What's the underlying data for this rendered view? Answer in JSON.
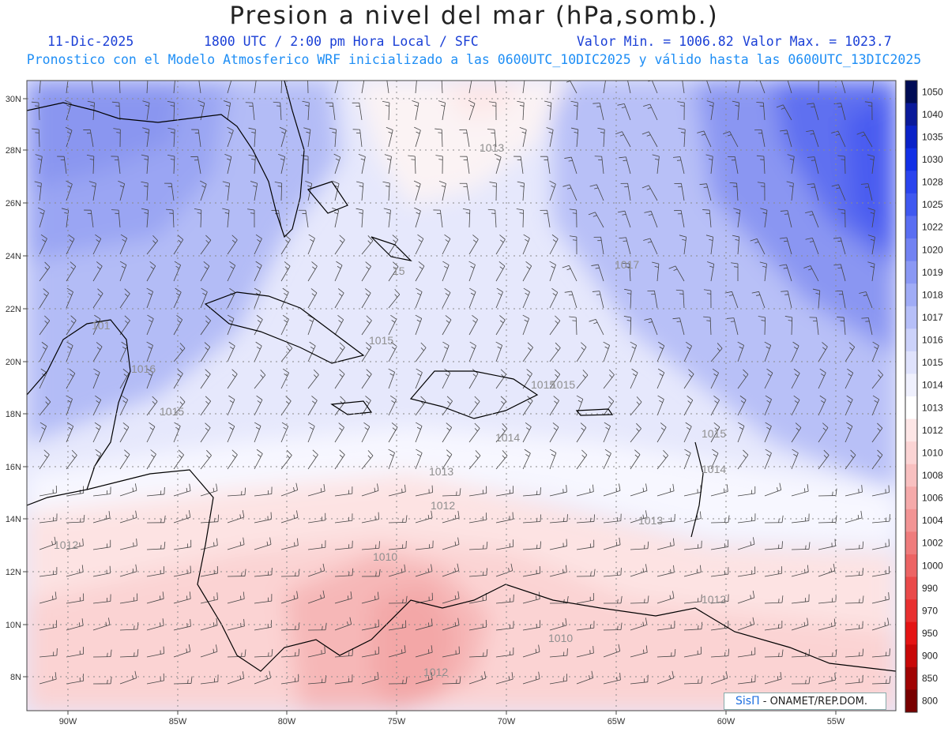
{
  "header": {
    "title": "Presion a nivel del mar (hPa,somb.)",
    "date": "11-Dic-2025",
    "time": "1800 UTC / 2:00 pm Hora Local / SFC",
    "min": "Valor Min. = 1006.82",
    "max": "Valor Max. = 1023.7",
    "subtitle": "Pronostico con el Modelo Atmosferico WRF inicializado a las 0600UTC_10DIC2025 y válido hasta las  0600UTC_13DIC2025"
  },
  "axes": {
    "lon_labels": [
      "90W",
      "85W",
      "80W",
      "75W",
      "70W",
      "65W",
      "60W",
      "55W"
    ],
    "lat_labels": [
      "30N",
      "28N",
      "26N",
      "24N",
      "22N",
      "20N",
      "18N",
      "16N",
      "14N",
      "12N",
      "10N",
      "8N"
    ]
  },
  "colorbar": {
    "levels": [
      "1050",
      "1040",
      "1035",
      "1030",
      "1028",
      "1025",
      "1022",
      "1020",
      "1019",
      "1018",
      "1017",
      "1016",
      "1015",
      "1014",
      "1013",
      "1012",
      "1010",
      "1008",
      "1006",
      "1004",
      "1002",
      "1000",
      "990",
      "970",
      "950",
      "900",
      "850",
      "800"
    ],
    "colors": [
      "#000c55",
      "#0a1a9a",
      "#0a22c8",
      "#1230e6",
      "#2a44ee",
      "#3f58f0",
      "#5a6ef2",
      "#7282f2",
      "#8a98f4",
      "#a0acf6",
      "#b6bff8",
      "#ccd2fa",
      "#dfe2fc",
      "#eff0fd",
      "#ffffff",
      "#fde6e6",
      "#fbd4d4",
      "#f8c0c0",
      "#f5aaaa",
      "#f29494",
      "#ef7c7c",
      "#ec6464",
      "#ea4a4a",
      "#e83030",
      "#e41414",
      "#c80808",
      "#a00404",
      "#780000"
    ]
  },
  "contour_labels": [
    {
      "text": "1013"
    },
    {
      "text": "1017"
    },
    {
      "text": "15"
    },
    {
      "text": "1015"
    },
    {
      "text": "101"
    },
    {
      "text": "1016"
    },
    {
      "text": "1015"
    },
    {
      "text": "1015"
    },
    {
      "text": "1015"
    },
    {
      "text": "1014"
    },
    {
      "text": "1015"
    },
    {
      "text": "1014"
    },
    {
      "text": "1013"
    },
    {
      "text": "1012"
    },
    {
      "text": "1013"
    },
    {
      "text": "1012"
    },
    {
      "text": "1010"
    },
    {
      "text": "1012"
    },
    {
      "text": "1010"
    },
    {
      "text": "1012"
    }
  ],
  "credit": {
    "logo": "SisΠ",
    "text": " - ONAMET/REP.DOM."
  }
}
